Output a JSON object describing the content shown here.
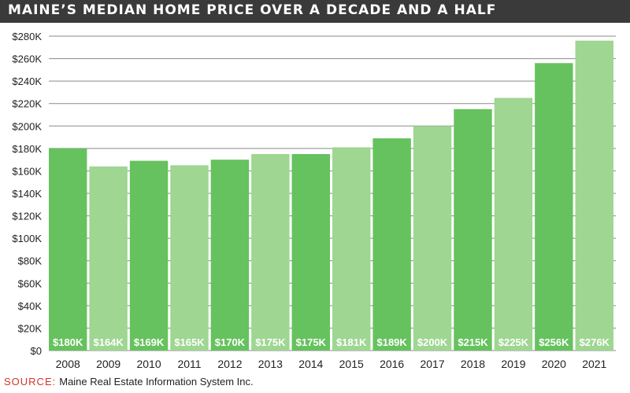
{
  "title": "MAINE’S MEDIAN HOME PRICE OVER A DECADE AND A HALF",
  "source": {
    "label": "SOURCE:",
    "text": "Maine Real Estate Information System Inc."
  },
  "colors": {
    "bar_dark": "#66c25e",
    "bar_light": "#9ed692",
    "title_bg": "#3a3a3a",
    "source_label": "#d0342c"
  },
  "chart_data": {
    "type": "bar",
    "title": "MAINE’S MEDIAN HOME PRICE OVER A DECADE AND A HALF",
    "categories": [
      "2008",
      "2009",
      "2010",
      "2011",
      "2012",
      "2013",
      "2014",
      "2015",
      "2016",
      "2017",
      "2018",
      "2019",
      "2020",
      "2021"
    ],
    "values": [
      180,
      164,
      169,
      165,
      170,
      175,
      175,
      181,
      189,
      200,
      215,
      225,
      256,
      276
    ],
    "value_labels": [
      "$180K",
      "$164K",
      "$169K",
      "$165K",
      "$170K",
      "$175K",
      "$175K",
      "$181K",
      "$189K",
      "$200K",
      "$215K",
      "$225K",
      "$256K",
      "$276K"
    ],
    "value_unit": "thousands of dollars",
    "ylim": [
      0,
      280
    ],
    "yticks": [
      0,
      20,
      40,
      60,
      80,
      100,
      120,
      140,
      160,
      180,
      200,
      220,
      240,
      260,
      280
    ],
    "ytick_labels": [
      "$0",
      "$20K",
      "$40K",
      "$60K",
      "$80K",
      "$100K",
      "$120K",
      "$140K",
      "$160K",
      "$180K",
      "$200K",
      "$220K",
      "$240K",
      "$260K",
      "$280K"
    ],
    "grid": true,
    "xlabel": "",
    "ylabel": ""
  }
}
